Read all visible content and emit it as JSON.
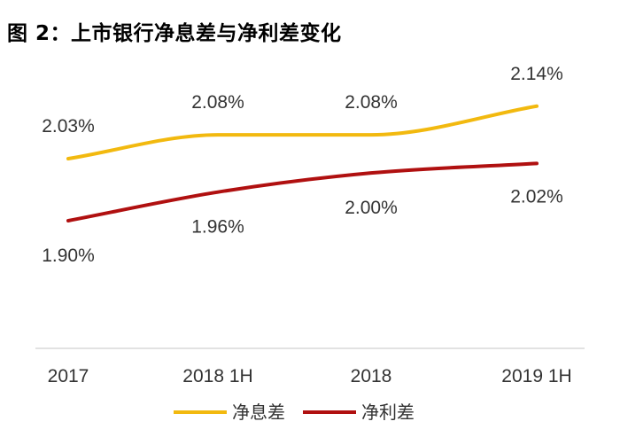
{
  "title": "图 2：上市银行净息差与净利差变化",
  "chart_data": {
    "type": "line",
    "categories": [
      "2017",
      "2018 1H",
      "2018",
      "2019 1H"
    ],
    "series": [
      {
        "name": "净息差",
        "values": [
          2.03,
          2.08,
          2.08,
          2.14
        ],
        "labels": [
          "2.03%",
          "2.08%",
          "2.08%",
          "2.14%"
        ],
        "color": "#F2B90F"
      },
      {
        "name": "净利差",
        "values": [
          1.9,
          1.96,
          2.0,
          2.02
        ],
        "labels": [
          "1.90%",
          "1.96%",
          "2.00%",
          "2.02%"
        ],
        "color": "#B01010"
      }
    ],
    "legend": "bottom",
    "grid": false,
    "line_style": "smooth"
  }
}
